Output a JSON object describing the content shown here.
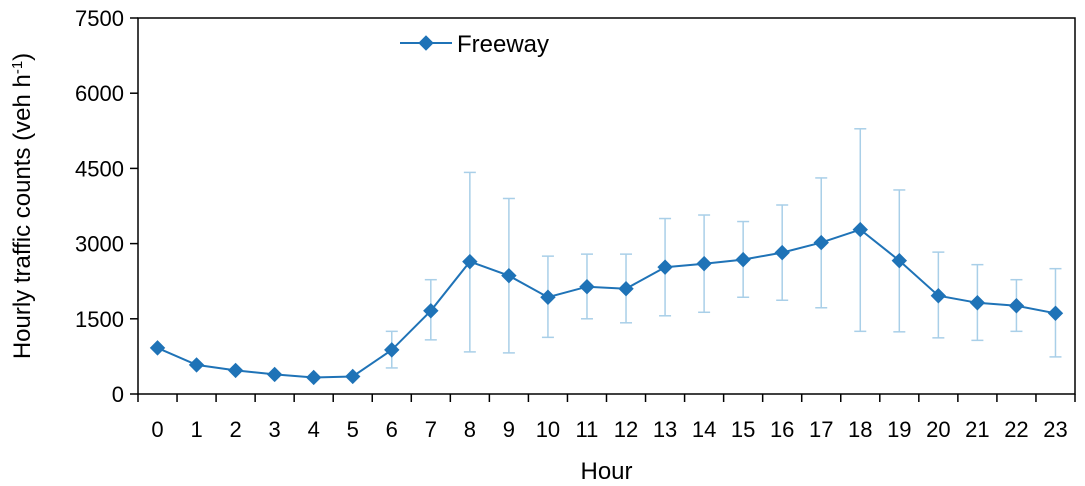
{
  "chart_data": {
    "type": "line",
    "xlabel": "Hour",
    "ylabel_main": "Hourly traffic counts (veh h",
    "ylabel_sup": "-1",
    "ylabel_end": ")",
    "ylim": [
      0,
      7500
    ],
    "yticks": [
      0,
      1500,
      3000,
      4500,
      6000,
      7500
    ],
    "categories": [
      "0",
      "1",
      "2",
      "3",
      "4",
      "5",
      "6",
      "7",
      "8",
      "9",
      "10",
      "11",
      "12",
      "13",
      "14",
      "15",
      "16",
      "17",
      "18",
      "19",
      "20",
      "21",
      "22",
      "23"
    ],
    "series": [
      {
        "name": "Freeway",
        "color": "#1f73b7",
        "values": [
          920,
          580,
          470,
          390,
          330,
          350,
          880,
          1660,
          2640,
          2360,
          1930,
          2140,
          2100,
          2530,
          2600,
          2680,
          2820,
          3020,
          3280,
          2660,
          1960,
          1820,
          1760,
          1610
        ],
        "error_low": [
          920,
          580,
          470,
          390,
          330,
          350,
          520,
          1080,
          840,
          820,
          1130,
          1500,
          1420,
          1560,
          1630,
          1930,
          1870,
          1720,
          1250,
          1240,
          1120,
          1070,
          1250,
          740
        ],
        "error_high": [
          920,
          580,
          470,
          390,
          330,
          350,
          1250,
          2280,
          4420,
          3900,
          2750,
          2790,
          2790,
          3500,
          3570,
          3440,
          3770,
          4310,
          5290,
          4070,
          2830,
          2580,
          2280,
          2500
        ]
      }
    ],
    "error_color": "#a9cfe8",
    "legend_position": "top-left",
    "grid": false
  }
}
